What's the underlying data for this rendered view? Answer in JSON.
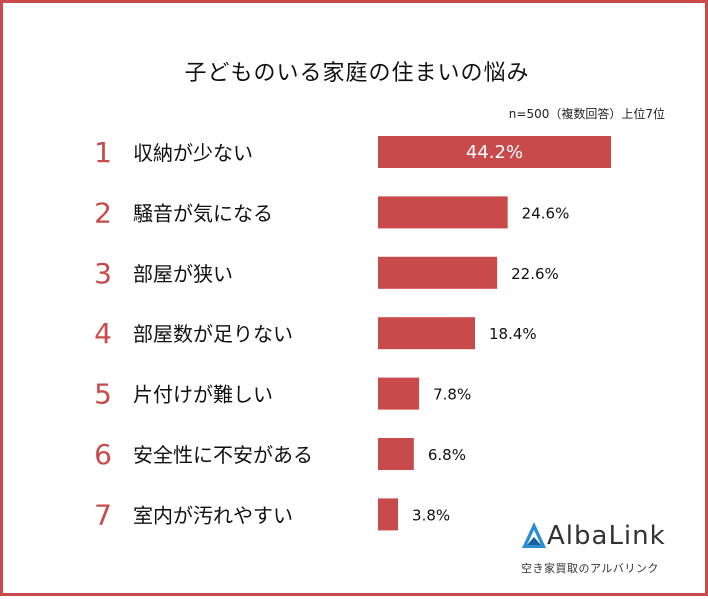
{
  "colors": {
    "accent": "#c94a4a",
    "text": "#111111",
    "number": "#c94a4a"
  },
  "title": "子どものいる家庭の住まいの悩み",
  "note": "n=500（複数回答）上位7位",
  "logo": {
    "name": "AlbaLink",
    "subtitle": "空き家買取のアルバリンク"
  },
  "chart_data": {
    "type": "bar",
    "orientation": "horizontal",
    "title": "子どものいる家庭の住まいの悩み",
    "ranks": [
      "1",
      "2",
      "3",
      "4",
      "5",
      "6",
      "7"
    ],
    "categories": [
      "収納が少ない",
      "騒音が気になる",
      "部屋が狭い",
      "部屋数が足りない",
      "片付けが難しい",
      "安全性に不安がある",
      "室内が汚れやすい"
    ],
    "values": [
      44.2,
      24.6,
      22.6,
      18.4,
      7.8,
      6.8,
      3.8
    ],
    "labels": [
      "44.2%",
      "24.6%",
      "22.6%",
      "18.4%",
      "7.8%",
      "6.8%",
      "3.8%"
    ],
    "unit": "%",
    "xlim": [
      0,
      44.2
    ],
    "grid": false,
    "legend": "none"
  }
}
